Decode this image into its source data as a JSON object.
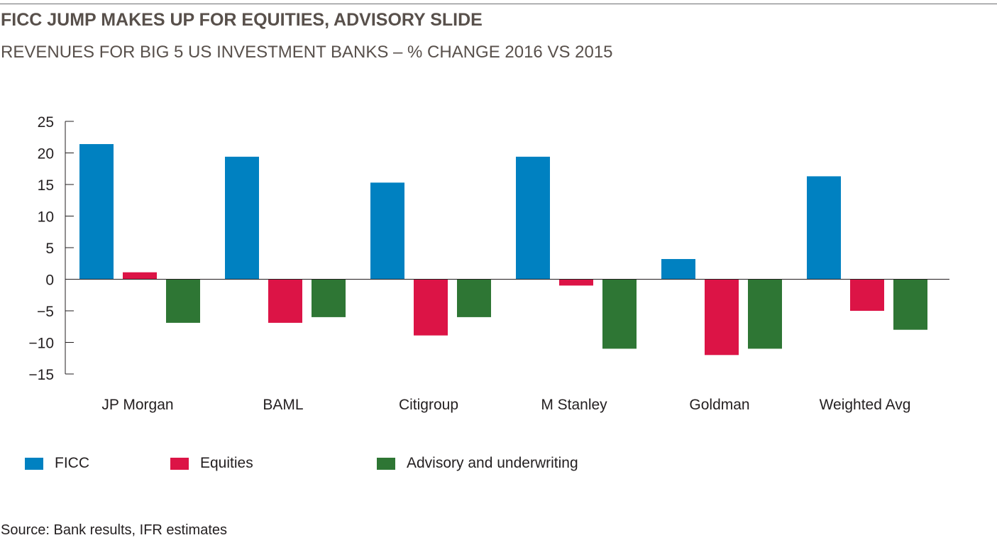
{
  "header": {
    "title": "FICC JUMP MAKES UP FOR EQUITIES, ADVISORY SLIDE",
    "subtitle": "REVENUES FOR BIG 5 US INVESTMENT BANKS – % CHANGE 2016 VS 2015"
  },
  "source": "Source: Bank results, IFR estimates",
  "chart_data": {
    "type": "bar",
    "title": "FICC JUMP MAKES UP FOR EQUITIES, ADVISORY SLIDE",
    "subtitle": "REVENUES FOR BIG 5 US INVESTMENT BANKS – % CHANGE 2016 VS 2015",
    "categories": [
      "JP Morgan",
      "BAML",
      "Citigroup",
      "M Stanley",
      "Goldman",
      "Weighted Avg"
    ],
    "series": [
      {
        "name": "FICC",
        "color": "#0081c1",
        "values": [
          21.4,
          19.4,
          15.3,
          19.4,
          3.2,
          16.3
        ]
      },
      {
        "name": "Equities",
        "color": "#dc1446",
        "values": [
          1.1,
          -6.9,
          -8.9,
          -1.0,
          -12.0,
          -5.0
        ]
      },
      {
        "name": "Advisory and underwriting",
        "color": "#2e7634",
        "values": [
          -6.9,
          -6.0,
          -6.0,
          -11.0,
          -11.0,
          -8.0
        ]
      }
    ],
    "yticks": [
      "25",
      "20",
      "15",
      "10",
      "5",
      "0",
      "−5",
      "−10",
      "−15"
    ],
    "ytick_values": [
      25,
      20,
      15,
      10,
      5,
      0,
      -5,
      -10,
      -15
    ],
    "ylim": [
      -15,
      25
    ],
    "xlabel": "",
    "ylabel": "",
    "grid": false,
    "legend_position": "bottom-left"
  }
}
